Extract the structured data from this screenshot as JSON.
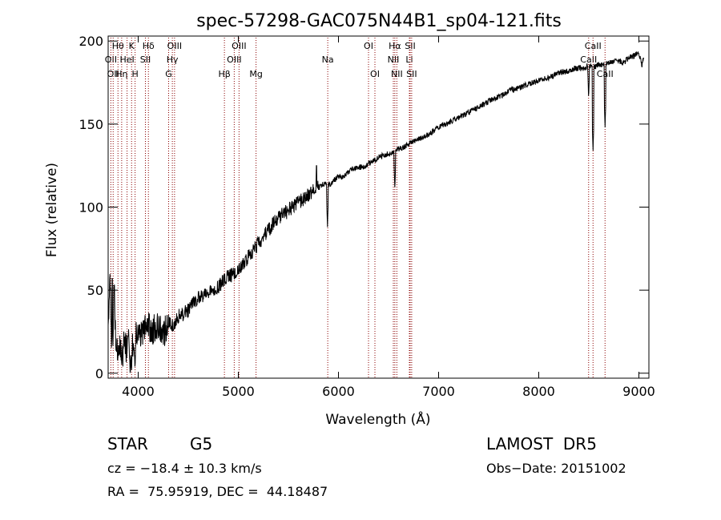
{
  "chart_data": {
    "type": "line",
    "title": "spec-57298-GAC075N44B1_sp04-121.fits",
    "xlabel": "Wavelength (Å)",
    "ylabel": "Flux (relative)",
    "xlim": [
      3700,
      9100
    ],
    "ylim": [
      -3,
      203
    ],
    "xticks": [
      4000,
      5000,
      6000,
      7000,
      8000,
      9000
    ],
    "yticks": [
      0,
      50,
      100,
      150,
      200
    ],
    "grid": false,
    "line_color": "#000000",
    "marker_color": "#8b0000",
    "series": [
      {
        "x": [
          3700,
          3720,
          3740,
          3760,
          3780,
          3800,
          3820,
          3840,
          3860,
          3880,
          3900,
          3920,
          3940,
          3960,
          3980,
          4000,
          4050,
          4100,
          4150,
          4200,
          4250,
          4300,
          4350,
          4400,
          4450,
          4500,
          4550,
          4600,
          4650,
          4700,
          4750,
          4800,
          4850,
          4900,
          4950,
          5000,
          5050,
          5100,
          5150,
          5200,
          5250,
          5300,
          5350,
          5400,
          5450,
          5500,
          5550,
          5600,
          5650,
          5700,
          5750,
          5800,
          5850,
          5900,
          5950,
          6000,
          6050,
          6100,
          6150,
          6200,
          6250,
          6300,
          6350,
          6400,
          6450,
          6500,
          6550,
          6600,
          6650,
          6700,
          6750,
          6800,
          6900,
          7000,
          7100,
          7200,
          7300,
          7400,
          7500,
          7600,
          7700,
          7800,
          7900,
          8000,
          8100,
          8200,
          8300,
          8400,
          8450,
          8500,
          8550,
          8600,
          8650,
          8700,
          8750,
          8800,
          8850,
          8900,
          8950,
          9000,
          9030,
          9050
        ],
        "y": [
          30,
          55,
          5,
          50,
          15,
          12,
          20,
          10,
          18,
          15,
          22,
          8,
          20,
          15,
          25,
          20,
          25,
          28,
          26,
          30,
          22,
          32,
          28,
          34,
          36,
          38,
          42,
          45,
          47,
          48,
          50,
          52,
          56,
          58,
          60,
          62,
          66,
          70,
          74,
          78,
          82,
          86,
          90,
          93,
          96,
          98,
          101,
          103,
          105,
          107,
          110,
          112,
          114,
          113,
          116,
          118,
          118,
          121,
          123,
          124,
          124,
          126,
          128,
          130,
          131,
          132,
          133,
          135,
          136,
          138,
          140,
          141,
          144,
          148,
          151,
          154,
          157,
          160,
          164,
          166,
          170,
          172,
          174,
          176,
          178,
          181,
          182,
          184,
          183,
          186,
          184,
          186,
          186,
          187,
          188,
          188,
          187,
          190,
          191,
          193,
          185,
          190
        ]
      }
    ],
    "dips": [
      {
        "x": 5890,
        "y": 88
      },
      {
        "x": 6563,
        "y": 110
      },
      {
        "x": 8498,
        "y": 165
      },
      {
        "x": 8542,
        "y": 134
      },
      {
        "x": 8662,
        "y": 148
      },
      {
        "x": 3933,
        "y": 0
      },
      {
        "x": 3968,
        "y": 2
      }
    ],
    "spikes": [
      {
        "x": 5780,
        "y": 125
      },
      {
        "x": 3740,
        "y": 57
      },
      {
        "x": 3760,
        "y": 53
      }
    ],
    "line_markers": [
      {
        "x": 3727,
        "label": "OII",
        "row": 2
      },
      {
        "x": 3750,
        "label": "OII",
        "row": 3
      },
      {
        "x": 3798,
        "label": "Hθ",
        "row": 1
      },
      {
        "x": 3835,
        "label": "Hη",
        "row": 3
      },
      {
        "x": 3889,
        "label": "HeI",
        "row": 2
      },
      {
        "x": 3934,
        "label": "K",
        "row": 1
      },
      {
        "x": 3969,
        "label": "H",
        "row": 3
      },
      {
        "x": 4072,
        "label": "SII",
        "row": 2
      },
      {
        "x": 4102,
        "label": "Hδ",
        "row": 1
      },
      {
        "x": 4304,
        "label": "G",
        "row": 3
      },
      {
        "x": 4341,
        "label": "Hγ",
        "row": 2
      },
      {
        "x": 4363,
        "label": "OIII",
        "row": 1
      },
      {
        "x": 4861,
        "label": "Hβ",
        "row": 3
      },
      {
        "x": 4959,
        "label": "OIII",
        "row": 2
      },
      {
        "x": 5007,
        "label": "OIII",
        "row": 1
      },
      {
        "x": 5177,
        "label": "Mg",
        "row": 3
      },
      {
        "x": 5893,
        "label": "Na",
        "row": 2
      },
      {
        "x": 6300,
        "label": "OI",
        "row": 1
      },
      {
        "x": 6364,
        "label": "OI",
        "row": 3
      },
      {
        "x": 6548,
        "label": "NII",
        "row": 2
      },
      {
        "x": 6563,
        "label": "Hα",
        "row": 1
      },
      {
        "x": 6583,
        "label": "NII",
        "row": 3
      },
      {
        "x": 6708,
        "label": "Li",
        "row": 2
      },
      {
        "x": 6716,
        "label": "SII",
        "row": 1
      },
      {
        "x": 6731,
        "label": "SII",
        "row": 3
      },
      {
        "x": 8498,
        "label": "CaII",
        "row": 2
      },
      {
        "x": 8542,
        "label": "CaII",
        "row": 1
      },
      {
        "x": 8662,
        "label": "CaII",
        "row": 3
      }
    ]
  },
  "info": {
    "class_label": "STAR",
    "subclass_label": "G5",
    "survey_label": "LAMOST  DR5",
    "redshift_label": "cz = −18.4 ± 10.3 km/s",
    "obs_date_label": "Obs−Date: 20151002",
    "coords_label": "RA =  75.95919, DEC =  44.18487"
  }
}
